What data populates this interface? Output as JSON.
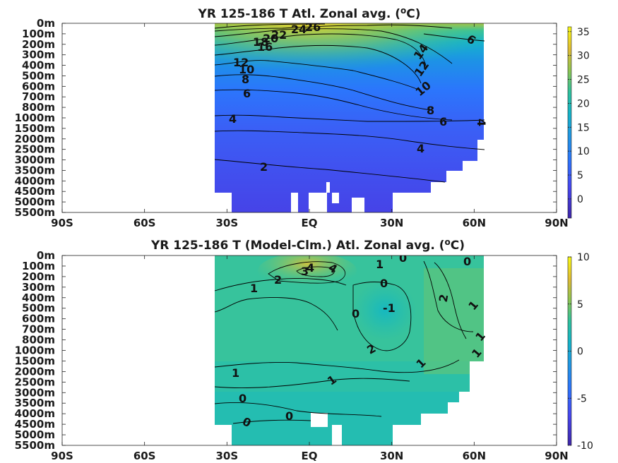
{
  "chart_data": [
    {
      "type": "heatmap",
      "title": "YR 125-186 T Atl. Zonal avg. (",
      "title_sup": "o",
      "title_end": "C)",
      "x_ticks": [
        "90S",
        "60S",
        "30S",
        "EQ",
        "30N",
        "60N",
        "90N"
      ],
      "y_ticks": [
        "0m",
        "100m",
        "200m",
        "300m",
        "400m",
        "500m",
        "600m",
        "700m",
        "800m",
        "1000m",
        "1500m",
        "2000m",
        "2500m",
        "3000m",
        "3500m",
        "4000m",
        "4500m",
        "5000m",
        "5500m"
      ],
      "colorbar_ticks": [
        "35",
        "30",
        "25",
        "20",
        "15",
        "10",
        "5",
        "0"
      ],
      "colorbar_range": [
        -4,
        36
      ],
      "contour_labels": [
        "26",
        "24",
        "22",
        "20",
        "18",
        "16",
        "14",
        "12",
        "12",
        "10",
        "10",
        "8",
        "8",
        "6",
        "6",
        "6",
        "4",
        "4",
        "4",
        "2"
      ],
      "grid": false
    },
    {
      "type": "heatmap",
      "title": "YR 125-186 T (Model-Clm.) Atl. Zonal avg. (",
      "title_sup": "o",
      "title_end": "C)",
      "x_ticks": [
        "90S",
        "60S",
        "30S",
        "EQ",
        "30N",
        "60N",
        "90N"
      ],
      "y_ticks": [
        "0m",
        "100m",
        "200m",
        "300m",
        "400m",
        "500m",
        "600m",
        "700m",
        "800m",
        "1000m",
        "1500m",
        "2000m",
        "2500m",
        "3000m",
        "3500m",
        "4000m",
        "4500m",
        "5000m",
        "5500m"
      ],
      "colorbar_ticks": [
        "10",
        "5",
        "0",
        "-5",
        "-10"
      ],
      "colorbar_range": [
        -10,
        10
      ],
      "contour_labels": [
        "4",
        "3",
        "4",
        "2",
        "1",
        "1",
        "0",
        "0",
        "0",
        "-1",
        "2",
        "0",
        "1",
        "1",
        "1",
        "2",
        "1",
        "1",
        "1",
        "0",
        "0",
        "0"
      ],
      "grid": false
    }
  ]
}
